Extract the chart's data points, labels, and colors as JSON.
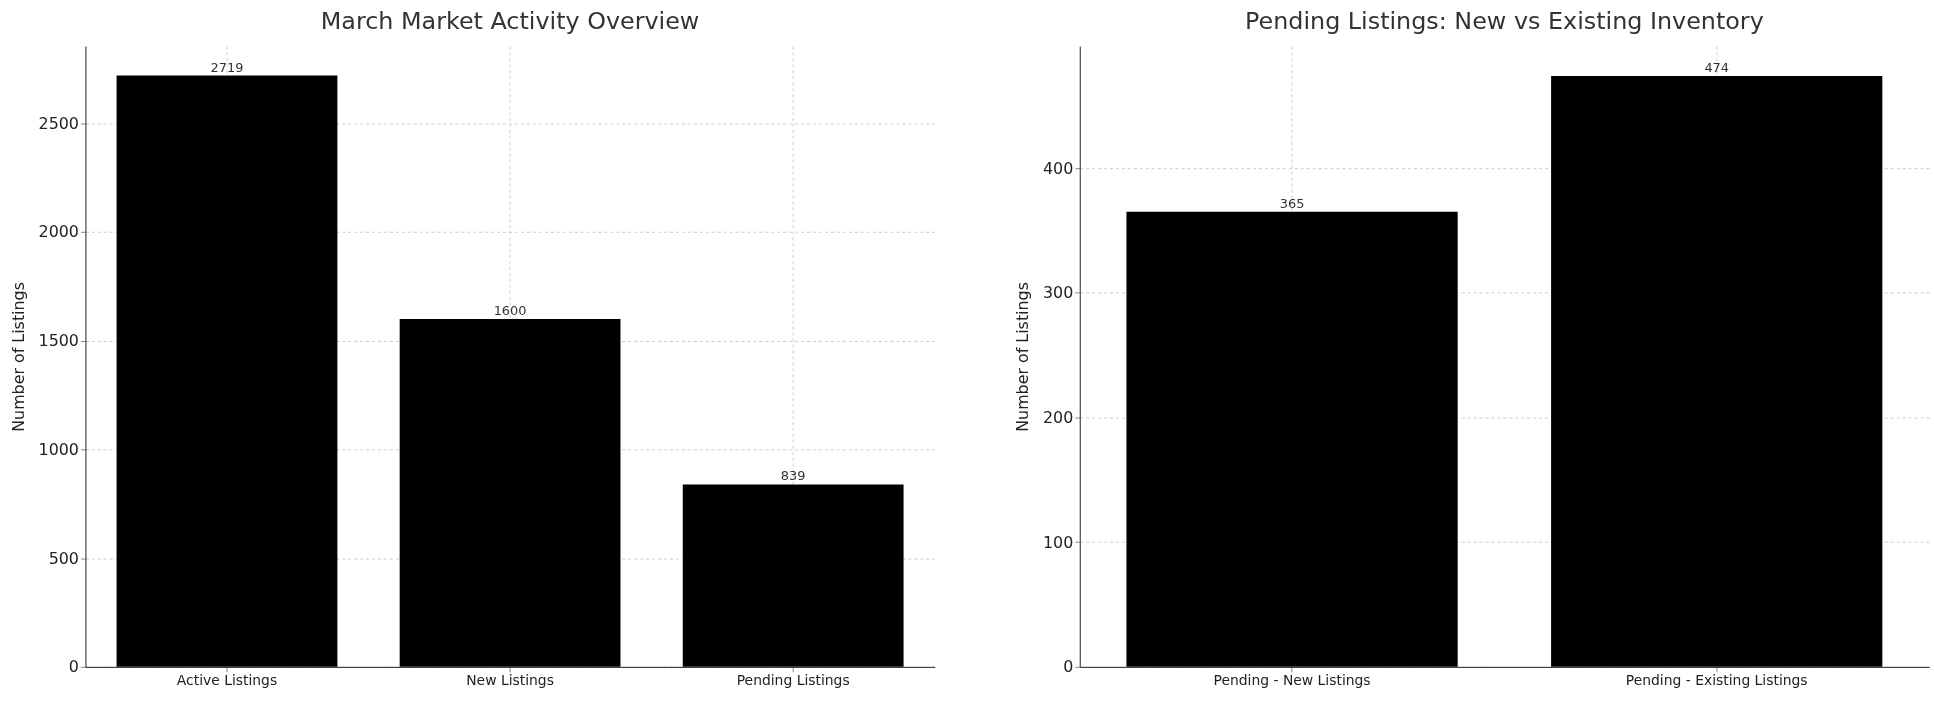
{
  "chart_data": [
    {
      "type": "bar",
      "title": "March Market Activity Overview",
      "ylabel": "Number of Listings",
      "categories": [
        "Active Listings",
        "New Listings",
        "Pending Listings"
      ],
      "values": [
        2719,
        1600,
        839
      ],
      "color": "#000000",
      "ylim": [
        0,
        2855
      ],
      "yticks": [
        0,
        500,
        1000,
        1500,
        2000,
        2500
      ],
      "grid": true,
      "data_labels": true
    },
    {
      "type": "bar",
      "title": "Pending Listings: New vs Existing Inventory",
      "ylabel": "Number of Listings",
      "categories": [
        "Pending - New Listings",
        "Pending - Existing Listings"
      ],
      "values": [
        365,
        474
      ],
      "color": "#000000",
      "ylim": [
        0,
        498
      ],
      "yticks": [
        0,
        100,
        200,
        300,
        400
      ],
      "grid": true,
      "data_labels": true
    }
  ]
}
